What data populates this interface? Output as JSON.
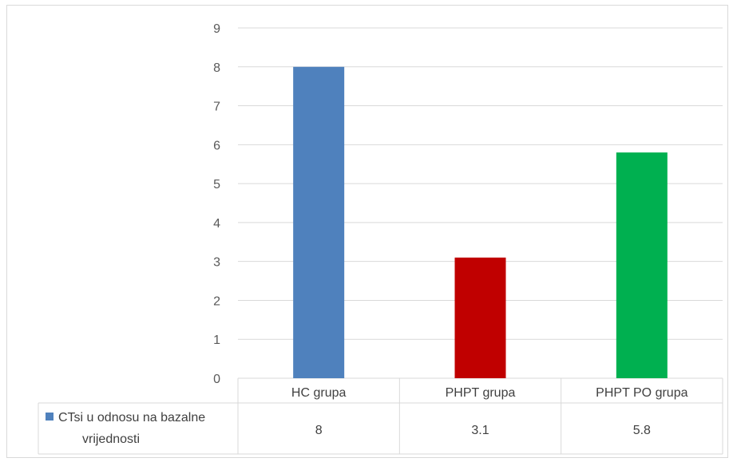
{
  "chart_data": {
    "type": "bar",
    "categories": [
      "HC grupa",
      "PHPT grupa",
      "PHPT PO grupa"
    ],
    "series": [
      {
        "name": "CTsi u odnosu na bazalne vrijednosti",
        "name_lines": [
          "CTsi u odnosu na bazalne",
          "vrijednosti"
        ],
        "values": [
          8,
          3.1,
          5.8
        ],
        "value_labels": [
          "8",
          "3.1",
          "5.8"
        ],
        "colors": [
          "#4f81bd",
          "#c00000",
          "#00b050"
        ]
      }
    ],
    "y_ticks": [
      "0",
      "1",
      "2",
      "3",
      "4",
      "5",
      "6",
      "7",
      "8",
      "9"
    ],
    "ylim": [
      0,
      9
    ],
    "grid": true,
    "legend_placement": "data-table",
    "legend_marker_color": "#4f81bd",
    "grid_color": "#d9d9d9"
  }
}
